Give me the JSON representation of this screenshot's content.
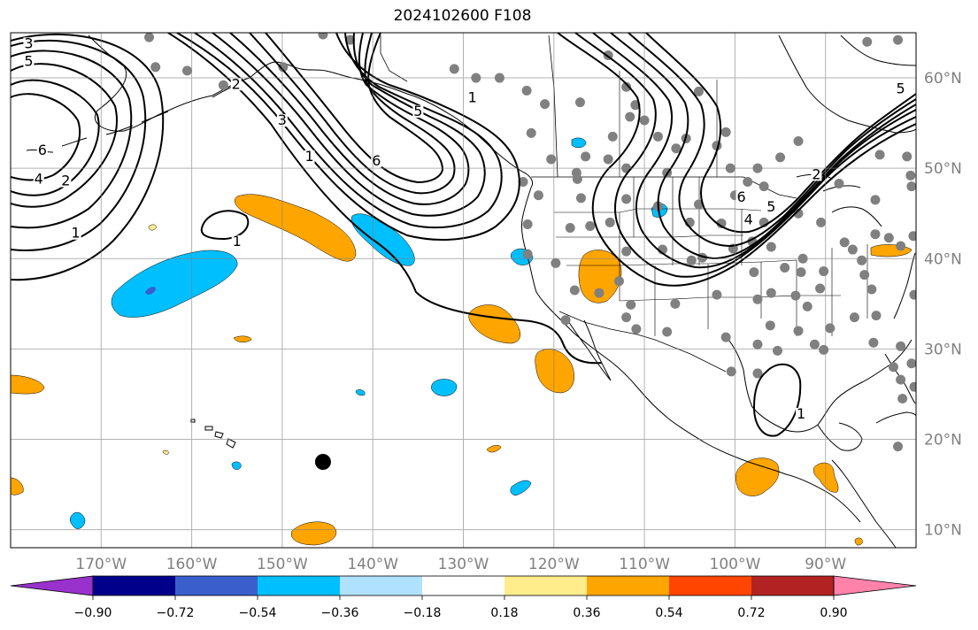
{
  "title": "2024102600 F108",
  "map": {
    "projection": "plate-carree",
    "lon_range": [
      -180,
      -80
    ],
    "lat_range": [
      8,
      65
    ],
    "grid_lon": [
      -170,
      -160,
      -150,
      -140,
      -130,
      -120,
      -110,
      -100,
      -90
    ],
    "grid_lat": [
      10,
      20,
      30,
      40,
      50,
      60
    ],
    "lon_labels": [
      "170°W",
      "160°W",
      "150°W",
      "140°W",
      "130°W",
      "120°W",
      "110°W",
      "100°W",
      "90°W"
    ],
    "lat_labels": [
      "10°N",
      "20°N",
      "30°N",
      "40°N",
      "50°N",
      "60°N"
    ]
  },
  "colorbar": {
    "colors": [
      "#9932cc",
      "#00008b",
      "#3a5fcd",
      "#00bfff",
      "#b0e2ff",
      "#ffffff",
      "#ffec8b",
      "#ffa500",
      "#ff4500",
      "#b22222",
      "#ff82ab"
    ],
    "tick_labels": [
      "−0.90",
      "−0.72",
      "−0.54",
      "−0.36",
      "−0.18",
      "0.18",
      "0.36",
      "0.54",
      "0.72",
      "0.90"
    ]
  },
  "contour_labels": [
    {
      "text": "3",
      "lon": -178,
      "lat": 63.5
    },
    {
      "text": "5",
      "lon": -178,
      "lat": 61.5
    },
    {
      "text": "6",
      "lon": -176.5,
      "lat": 51.7
    },
    {
      "text": "4",
      "lon": -176.9,
      "lat": 48.5
    },
    {
      "text": "2",
      "lon": -173.9,
      "lat": 48.3
    },
    {
      "text": "1",
      "lon": -172.8,
      "lat": 42.5
    },
    {
      "text": "1",
      "lon": -155,
      "lat": 41.6
    },
    {
      "text": "2",
      "lon": -155.1,
      "lat": 59
    },
    {
      "text": "3",
      "lon": -150,
      "lat": 55
    },
    {
      "text": "1",
      "lon": -147,
      "lat": 51
    },
    {
      "text": "6",
      "lon": -139.6,
      "lat": 50.5
    },
    {
      "text": "1",
      "lon": -129,
      "lat": 57.5
    },
    {
      "text": "5",
      "lon": -135,
      "lat": 56
    },
    {
      "text": "1",
      "lon": -92.7,
      "lat": 22.5
    },
    {
      "text": "6",
      "lon": -99.3,
      "lat": 46.5
    },
    {
      "text": "4",
      "lon": -98.5,
      "lat": 44
    },
    {
      "text": "5",
      "lon": -96,
      "lat": 45.4
    },
    {
      "text": "2",
      "lon": -91,
      "lat": 49
    },
    {
      "text": "5",
      "lon": -81.7,
      "lat": 58.5
    }
  ],
  "station_points": [
    [
      -164.7,
      64.5
    ],
    [
      -164,
      61.2
    ],
    [
      -156.5,
      59.2
    ],
    [
      -149.9,
      61.2
    ],
    [
      -145.5,
      64.8
    ],
    [
      -142.5,
      64.2
    ],
    [
      -131,
      61
    ],
    [
      -128.6,
      60
    ],
    [
      -123,
      58.6
    ],
    [
      -114,
      62.5
    ],
    [
      -110,
      55.3
    ],
    [
      -108.5,
      53.5
    ],
    [
      -106.5,
      52.2
    ],
    [
      -104,
      58.5
    ],
    [
      -102,
      52.5
    ],
    [
      -100.5,
      50
    ],
    [
      -97.5,
      50
    ],
    [
      -95,
      51.2
    ],
    [
      -93,
      53
    ],
    [
      -88.5,
      48.3
    ],
    [
      -84.5,
      46.5
    ],
    [
      -81,
      51.3
    ],
    [
      -80.5,
      48
    ],
    [
      -85.4,
      64
    ],
    [
      -82,
      64.2
    ],
    [
      -79.5,
      56.5
    ],
    [
      -79,
      50
    ],
    [
      -112,
      50
    ],
    [
      -113.5,
      53.5
    ],
    [
      -114,
      51
    ],
    [
      -120.3,
      51
    ],
    [
      -122.5,
      53.9
    ],
    [
      -117.5,
      49.5
    ],
    [
      -123.4,
      48.5
    ],
    [
      -122.9,
      43.8
    ],
    [
      -122.9,
      40.5
    ],
    [
      -119.8,
      39.5
    ],
    [
      -116,
      43.6
    ],
    [
      -112,
      40.8
    ],
    [
      -117.7,
      36.5
    ],
    [
      -115,
      36.2
    ],
    [
      -112,
      33.5
    ],
    [
      -110.9,
      32.2
    ],
    [
      -106.6,
      35
    ],
    [
      -104.8,
      39.8
    ],
    [
      -105,
      44
    ],
    [
      -108,
      41
    ],
    [
      -102,
      36
    ],
    [
      -101,
      31.3
    ],
    [
      -97.5,
      35.5
    ],
    [
      -97.5,
      30.5
    ],
    [
      -96,
      36.2
    ],
    [
      -95.3,
      29.8
    ],
    [
      -94.5,
      39
    ],
    [
      -92,
      34.7
    ],
    [
      -90.2,
      29.9
    ],
    [
      -89.5,
      32.3
    ],
    [
      -92.7,
      38.5
    ],
    [
      -90.2,
      38.6
    ],
    [
      -87.9,
      41.8
    ],
    [
      -86,
      39.8
    ],
    [
      -85.7,
      38.2
    ],
    [
      -86.8,
      33.5
    ],
    [
      -84.4,
      33.7
    ],
    [
      -81.7,
      30.3
    ],
    [
      -83,
      42.3
    ],
    [
      -84.5,
      42.7
    ],
    [
      -81.7,
      41.4
    ],
    [
      -80,
      40.4
    ],
    [
      -80.2,
      25.8
    ],
    [
      -80.5,
      28.4
    ],
    [
      -81.7,
      26.6
    ],
    [
      -80,
      32.8
    ],
    [
      -80.2,
      36
    ],
    [
      -97.9,
      38.5
    ],
    [
      -100.2,
      41.1
    ],
    [
      -93,
      45
    ],
    [
      -96.8,
      44
    ],
    [
      -96,
      41.3
    ],
    [
      -112,
      46.6
    ],
    [
      -108.5,
      45.8
    ],
    [
      -104,
      46
    ],
    [
      -113.8,
      44
    ],
    [
      -117,
      46.7
    ],
    [
      -121.7,
      47
    ],
    [
      -121,
      57.1
    ],
    [
      -111.6,
      55.7
    ],
    [
      -116.5,
      51.3
    ],
    [
      -118.7,
      33.2
    ],
    [
      -100.4,
      27.5
    ],
    [
      -82,
      19.2
    ],
    [
      -80.6,
      49.2
    ],
    [
      -84,
      51.5
    ],
    [
      -97.5,
      27.3
    ],
    [
      -90.5,
      44
    ],
    [
      -92.5,
      40
    ],
    [
      -82.5,
      28
    ],
    [
      -87,
      41
    ],
    [
      -80.3,
      42.5
    ],
    [
      -96.1,
      32.6
    ],
    [
      -111.5,
      34.9
    ],
    [
      -93,
      32
    ],
    [
      -81.5,
      24.5
    ],
    [
      -126,
      60
    ],
    [
      -111,
      57
    ],
    [
      -112,
      59
    ],
    [
      -101,
      54
    ],
    [
      -101.5,
      43.9
    ],
    [
      -107.5,
      31.9
    ],
    [
      -160.5,
      60.8
    ],
    [
      -96.8,
      48
    ],
    [
      -91.2,
      30.5
    ],
    [
      -84.7,
      30.7
    ],
    [
      -84.9,
      36.6
    ],
    [
      -100,
      47
    ],
    [
      -107.5,
      49.5
    ],
    [
      -103.6,
      40.1
    ],
    [
      -112.8,
      37.5
    ],
    [
      -118.2,
      43.4
    ],
    [
      -117.4,
      48.8
    ],
    [
      -117.1,
      57.3
    ],
    [
      -105.4,
      53.3
    ],
    [
      -98.6,
      48.5
    ],
    [
      -98.1,
      41.9
    ],
    [
      -93.3,
      35.9
    ],
    [
      -90.6,
      36.7
    ]
  ],
  "marker_point": [
    -145.5,
    17.5
  ]
}
